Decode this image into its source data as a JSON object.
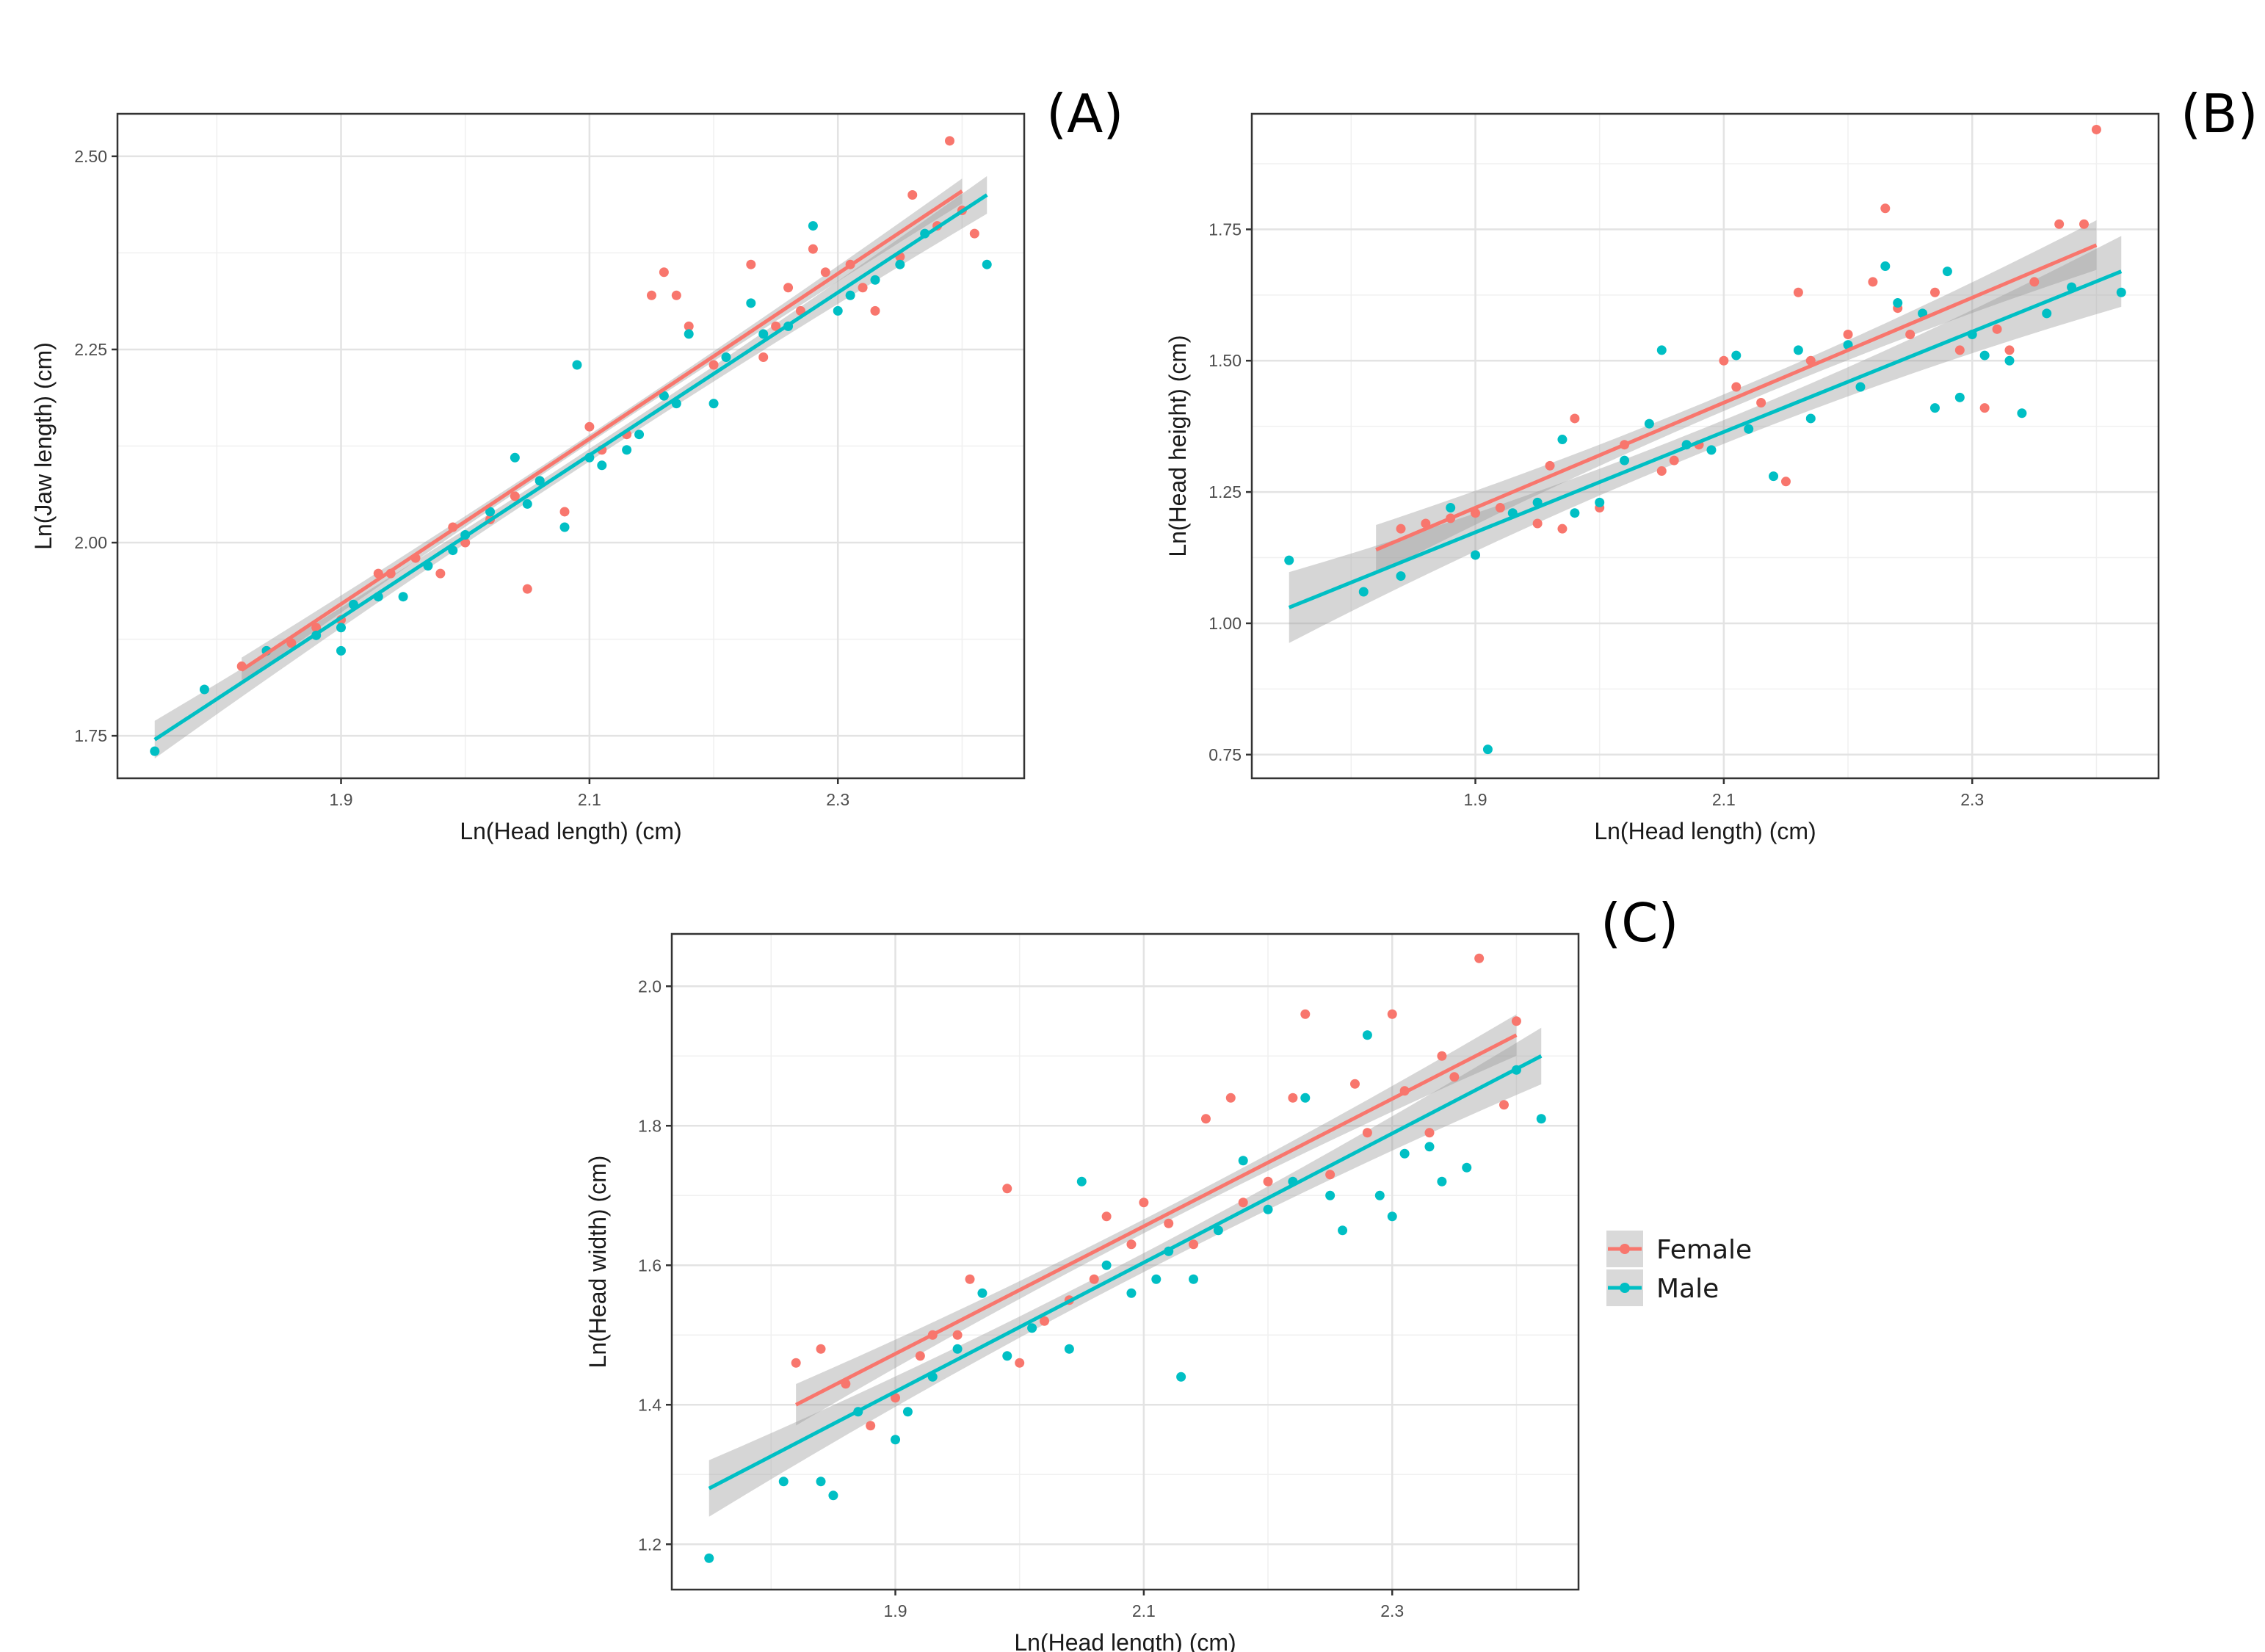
{
  "legend": {
    "items": [
      {
        "label": "Female",
        "color": "#F8766D"
      },
      {
        "label": "Male",
        "color": "#00BFC4"
      }
    ]
  },
  "chart_data": [
    {
      "type": "scatter",
      "panel_label": "(A)",
      "xlabel": "Ln(Head length) (cm)",
      "ylabel": "Ln(Jaw length) (cm)",
      "xlim": [
        1.72,
        2.45
      ],
      "ylim": [
        1.695,
        2.555
      ],
      "xticks": [
        1.9,
        2.1,
        2.3
      ],
      "xtick_labels": [
        "1.9",
        "2.1",
        "2.3"
      ],
      "yticks": [
        1.75,
        2.0,
        2.25,
        2.5
      ],
      "ytick_labels": [
        "1.75",
        "2.00",
        "2.25",
        "2.50"
      ],
      "grid": true,
      "series": [
        {
          "name": "Female",
          "color": "#F8766D",
          "fit": {
            "x": [
              1.82,
              2.4
            ],
            "y": [
              1.835,
              2.455
            ]
          },
          "ci_halfwidth": 0.012,
          "points": [
            [
              1.82,
              1.84
            ],
            [
              1.84,
              1.86
            ],
            [
              1.86,
              1.87
            ],
            [
              1.88,
              1.89
            ],
            [
              1.9,
              1.9
            ],
            [
              1.93,
              1.96
            ],
            [
              1.94,
              1.96
            ],
            [
              1.96,
              1.98
            ],
            [
              1.98,
              1.96
            ],
            [
              1.99,
              2.02
            ],
            [
              2.0,
              2.0
            ],
            [
              2.02,
              2.03
            ],
            [
              2.04,
              2.06
            ],
            [
              2.05,
              1.94
            ],
            [
              2.06,
              2.08
            ],
            [
              2.08,
              2.04
            ],
            [
              2.1,
              2.15
            ],
            [
              2.11,
              2.12
            ],
            [
              2.13,
              2.14
            ],
            [
              2.15,
              2.32
            ],
            [
              2.16,
              2.35
            ],
            [
              2.17,
              2.32
            ],
            [
              2.18,
              2.28
            ],
            [
              2.2,
              2.23
            ],
            [
              2.23,
              2.36
            ],
            [
              2.24,
              2.24
            ],
            [
              2.25,
              2.28
            ],
            [
              2.26,
              2.33
            ],
            [
              2.27,
              2.3
            ],
            [
              2.28,
              2.38
            ],
            [
              2.29,
              2.35
            ],
            [
              2.31,
              2.36
            ],
            [
              2.32,
              2.33
            ],
            [
              2.33,
              2.3
            ],
            [
              2.35,
              2.37
            ],
            [
              2.36,
              2.45
            ],
            [
              2.38,
              2.41
            ],
            [
              2.39,
              2.52
            ],
            [
              2.4,
              2.43
            ],
            [
              2.41,
              2.4
            ]
          ]
        },
        {
          "name": "Male",
          "color": "#00BFC4",
          "fit": {
            "x": [
              1.75,
              2.42
            ],
            "y": [
              1.745,
              2.45
            ]
          },
          "ci_halfwidth": 0.018,
          "points": [
            [
              1.75,
              1.73
            ],
            [
              1.79,
              1.81
            ],
            [
              1.84,
              1.86
            ],
            [
              1.88,
              1.88
            ],
            [
              1.9,
              1.86
            ],
            [
              1.9,
              1.89
            ],
            [
              1.91,
              1.92
            ],
            [
              1.93,
              1.93
            ],
            [
              1.95,
              1.93
            ],
            [
              1.97,
              1.97
            ],
            [
              1.99,
              1.99
            ],
            [
              2.0,
              2.01
            ],
            [
              2.02,
              2.04
            ],
            [
              2.04,
              2.11
            ],
            [
              2.05,
              2.05
            ],
            [
              2.06,
              2.08
            ],
            [
              2.08,
              2.02
            ],
            [
              2.09,
              2.23
            ],
            [
              2.1,
              2.11
            ],
            [
              2.11,
              2.1
            ],
            [
              2.13,
              2.12
            ],
            [
              2.14,
              2.14
            ],
            [
              2.16,
              2.19
            ],
            [
              2.17,
              2.18
            ],
            [
              2.18,
              2.27
            ],
            [
              2.2,
              2.18
            ],
            [
              2.21,
              2.24
            ],
            [
              2.23,
              2.31
            ],
            [
              2.24,
              2.27
            ],
            [
              2.26,
              2.28
            ],
            [
              2.28,
              2.41
            ],
            [
              2.3,
              2.3
            ],
            [
              2.31,
              2.32
            ],
            [
              2.33,
              2.34
            ],
            [
              2.35,
              2.36
            ],
            [
              2.37,
              2.4
            ],
            [
              2.42,
              2.36
            ]
          ]
        }
      ]
    },
    {
      "type": "scatter",
      "panel_label": "(B)",
      "xlabel": "Ln(Head length) (cm)",
      "ylabel": "Ln(Head height) (cm)",
      "xlim": [
        1.72,
        2.45
      ],
      "ylim": [
        0.705,
        1.97
      ],
      "xticks": [
        1.9,
        2.1,
        2.3
      ],
      "xtick_labels": [
        "1.9",
        "2.1",
        "2.3"
      ],
      "yticks": [
        0.75,
        1.0,
        1.25,
        1.5,
        1.75
      ],
      "ytick_labels": [
        "0.75",
        "1.00",
        "1.25",
        "1.50",
        "1.75"
      ],
      "grid": true,
      "series": [
        {
          "name": "Female",
          "color": "#F8766D",
          "fit": {
            "x": [
              1.82,
              2.4
            ],
            "y": [
              1.14,
              1.72
            ]
          },
          "ci_halfwidth": 0.035,
          "points": [
            [
              1.84,
              1.18
            ],
            [
              1.86,
              1.19
            ],
            [
              1.88,
              1.2
            ],
            [
              1.9,
              1.21
            ],
            [
              1.92,
              1.22
            ],
            [
              1.95,
              1.19
            ],
            [
              1.96,
              1.3
            ],
            [
              1.97,
              1.18
            ],
            [
              1.98,
              1.39
            ],
            [
              2.0,
              1.22
            ],
            [
              2.02,
              1.34
            ],
            [
              2.05,
              1.29
            ],
            [
              2.06,
              1.31
            ],
            [
              2.08,
              1.34
            ],
            [
              2.1,
              1.5
            ],
            [
              2.11,
              1.45
            ],
            [
              2.13,
              1.42
            ],
            [
              2.15,
              1.27
            ],
            [
              2.16,
              1.63
            ],
            [
              2.17,
              1.5
            ],
            [
              2.2,
              1.55
            ],
            [
              2.22,
              1.65
            ],
            [
              2.23,
              1.79
            ],
            [
              2.24,
              1.6
            ],
            [
              2.25,
              1.55
            ],
            [
              2.27,
              1.63
            ],
            [
              2.29,
              1.52
            ],
            [
              2.31,
              1.41
            ],
            [
              2.32,
              1.56
            ],
            [
              2.33,
              1.52
            ],
            [
              2.35,
              1.65
            ],
            [
              2.37,
              1.76
            ],
            [
              2.39,
              1.76
            ],
            [
              2.4,
              1.94
            ]
          ]
        },
        {
          "name": "Male",
          "color": "#00BFC4",
          "fit": {
            "x": [
              1.75,
              2.42
            ],
            "y": [
              1.03,
              1.67
            ]
          },
          "ci_halfwidth": 0.05,
          "points": [
            [
              1.75,
              1.12
            ],
            [
              1.81,
              1.06
            ],
            [
              1.84,
              1.09
            ],
            [
              1.88,
              1.22
            ],
            [
              1.9,
              1.13
            ],
            [
              1.91,
              0.76
            ],
            [
              1.93,
              1.21
            ],
            [
              1.95,
              1.23
            ],
            [
              1.97,
              1.35
            ],
            [
              1.98,
              1.21
            ],
            [
              2.0,
              1.23
            ],
            [
              2.02,
              1.31
            ],
            [
              2.04,
              1.38
            ],
            [
              2.05,
              1.52
            ],
            [
              2.07,
              1.34
            ],
            [
              2.09,
              1.33
            ],
            [
              2.11,
              1.51
            ],
            [
              2.12,
              1.37
            ],
            [
              2.14,
              1.28
            ],
            [
              2.16,
              1.52
            ],
            [
              2.17,
              1.39
            ],
            [
              2.2,
              1.53
            ],
            [
              2.21,
              1.45
            ],
            [
              2.23,
              1.68
            ],
            [
              2.24,
              1.61
            ],
            [
              2.26,
              1.59
            ],
            [
              2.27,
              1.41
            ],
            [
              2.28,
              1.67
            ],
            [
              2.29,
              1.43
            ],
            [
              2.3,
              1.55
            ],
            [
              2.31,
              1.51
            ],
            [
              2.33,
              1.5
            ],
            [
              2.34,
              1.4
            ],
            [
              2.36,
              1.59
            ],
            [
              2.38,
              1.64
            ],
            [
              2.42,
              1.63
            ]
          ]
        }
      ]
    },
    {
      "type": "scatter",
      "panel_label": "(C)",
      "xlabel": "Ln(Head length) (cm)",
      "ylabel": "Ln(Head width) (cm)",
      "xlim": [
        1.72,
        2.45
      ],
      "ylim": [
        1.135,
        2.075
      ],
      "xticks": [
        1.9,
        2.1,
        2.3
      ],
      "xtick_labels": [
        "1.9",
        "2.1",
        "2.3"
      ],
      "yticks": [
        1.2,
        1.4,
        1.6,
        1.8,
        2.0
      ],
      "ytick_labels": [
        "1.2",
        "1.4",
        "1.6",
        "1.8",
        "2.0"
      ],
      "grid": true,
      "series": [
        {
          "name": "Female",
          "color": "#F8766D",
          "fit": {
            "x": [
              1.82,
              2.4
            ],
            "y": [
              1.4,
              1.93
            ]
          },
          "ci_halfwidth": 0.022,
          "points": [
            [
              1.82,
              1.46
            ],
            [
              1.84,
              1.48
            ],
            [
              1.86,
              1.43
            ],
            [
              1.88,
              1.37
            ],
            [
              1.9,
              1.41
            ],
            [
              1.92,
              1.47
            ],
            [
              1.93,
              1.5
            ],
            [
              1.95,
              1.5
            ],
            [
              1.96,
              1.58
            ],
            [
              1.99,
              1.71
            ],
            [
              2.0,
              1.46
            ],
            [
              2.02,
              1.52
            ],
            [
              2.04,
              1.55
            ],
            [
              2.06,
              1.58
            ],
            [
              2.07,
              1.67
            ],
            [
              2.09,
              1.63
            ],
            [
              2.1,
              1.69
            ],
            [
              2.12,
              1.66
            ],
            [
              2.14,
              1.63
            ],
            [
              2.15,
              1.81
            ],
            [
              2.17,
              1.84
            ],
            [
              2.18,
              1.69
            ],
            [
              2.2,
              1.72
            ],
            [
              2.22,
              1.84
            ],
            [
              2.23,
              1.96
            ],
            [
              2.25,
              1.73
            ],
            [
              2.27,
              1.86
            ],
            [
              2.28,
              1.79
            ],
            [
              2.3,
              1.96
            ],
            [
              2.31,
              1.85
            ],
            [
              2.33,
              1.79
            ],
            [
              2.34,
              1.9
            ],
            [
              2.35,
              1.87
            ],
            [
              2.37,
              2.04
            ],
            [
              2.39,
              1.83
            ],
            [
              2.4,
              1.95
            ]
          ]
        },
        {
          "name": "Male",
          "color": "#00BFC4",
          "fit": {
            "x": [
              1.75,
              2.42
            ],
            "y": [
              1.28,
              1.9
            ]
          },
          "ci_halfwidth": 0.03,
          "points": [
            [
              1.75,
              1.18
            ],
            [
              1.81,
              1.29
            ],
            [
              1.84,
              1.29
            ],
            [
              1.85,
              1.27
            ],
            [
              1.87,
              1.39
            ],
            [
              1.9,
              1.35
            ],
            [
              1.91,
              1.39
            ],
            [
              1.93,
              1.44
            ],
            [
              1.95,
              1.48
            ],
            [
              1.97,
              1.56
            ],
            [
              1.99,
              1.47
            ],
            [
              2.01,
              1.51
            ],
            [
              2.04,
              1.48
            ],
            [
              2.05,
              1.72
            ],
            [
              2.07,
              1.6
            ],
            [
              2.09,
              1.56
            ],
            [
              2.11,
              1.58
            ],
            [
              2.12,
              1.62
            ],
            [
              2.13,
              1.44
            ],
            [
              2.14,
              1.58
            ],
            [
              2.16,
              1.65
            ],
            [
              2.18,
              1.75
            ],
            [
              2.2,
              1.68
            ],
            [
              2.22,
              1.72
            ],
            [
              2.23,
              1.84
            ],
            [
              2.25,
              1.7
            ],
            [
              2.26,
              1.65
            ],
            [
              2.28,
              1.93
            ],
            [
              2.29,
              1.7
            ],
            [
              2.3,
              1.67
            ],
            [
              2.31,
              1.76
            ],
            [
              2.33,
              1.77
            ],
            [
              2.34,
              1.72
            ],
            [
              2.36,
              1.74
            ],
            [
              2.4,
              1.88
            ],
            [
              2.42,
              1.81
            ]
          ]
        }
      ]
    }
  ]
}
